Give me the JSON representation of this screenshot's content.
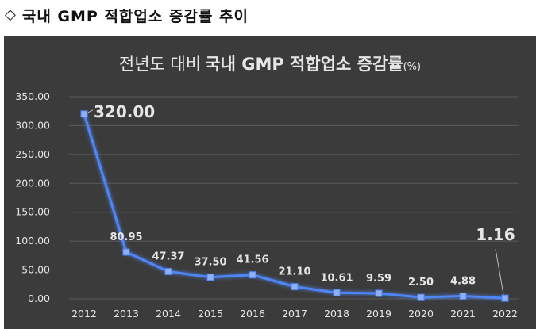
{
  "header": {
    "icon": "diamond-outline-icon",
    "title": "국내 GMP 적합업소 증감률 추이"
  },
  "chart_data": {
    "type": "line",
    "title_prefix": "전년도 대비",
    "title_bold": "국내 GMP 적합업소 증감률",
    "title_unit": "(%)",
    "categories": [
      "2012",
      "2013",
      "2014",
      "2015",
      "2016",
      "2017",
      "2018",
      "2019",
      "2020",
      "2021",
      "2022"
    ],
    "values": [
      320.0,
      80.95,
      47.37,
      37.5,
      41.56,
      21.1,
      10.61,
      9.59,
      2.5,
      4.88,
      1.16
    ],
    "data_labels": [
      "320.00",
      "80.95",
      "47.37",
      "37.50",
      "41.56",
      "21.10",
      "10.61",
      "9.59",
      "2.50",
      "4.88",
      "1.16"
    ],
    "y_ticks": [
      "0.00",
      "50.00",
      "100.00",
      "150.00",
      "200.00",
      "250.00",
      "300.00",
      "350.00"
    ],
    "ylim": [
      0,
      350
    ],
    "grid": true,
    "legend": "none",
    "colors": {
      "background": "#3b3b3b",
      "line": "#4f86f7",
      "marker": "#8fb0f5",
      "grid": "#5a5a5a",
      "text": "#e6e6e6"
    }
  }
}
